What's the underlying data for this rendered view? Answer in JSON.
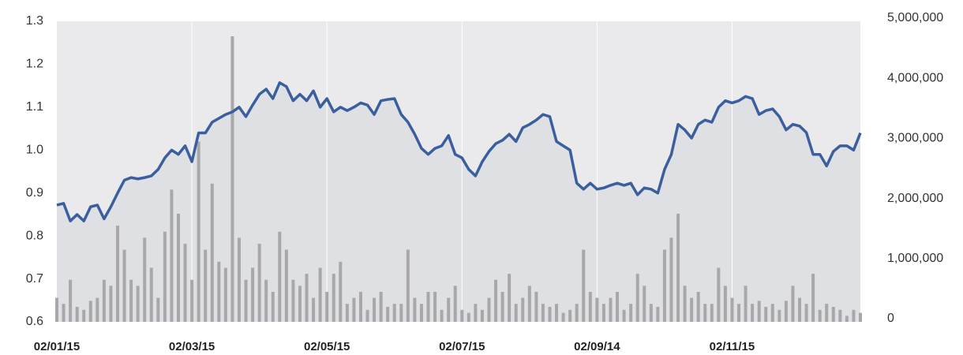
{
  "chart_data": {
    "type": "line-bar",
    "categories": [
      "02/01/15",
      null,
      null,
      null,
      null,
      null,
      null,
      null,
      null,
      null,
      null,
      null,
      null,
      null,
      null,
      null,
      null,
      null,
      null,
      null,
      "02/03/15",
      null,
      null,
      null,
      null,
      null,
      null,
      null,
      null,
      null,
      null,
      null,
      null,
      null,
      null,
      null,
      null,
      null,
      null,
      null,
      "02/05/15",
      null,
      null,
      null,
      null,
      null,
      null,
      null,
      null,
      null,
      null,
      null,
      null,
      null,
      null,
      null,
      null,
      null,
      null,
      null,
      "02/07/15",
      null,
      null,
      null,
      null,
      null,
      null,
      null,
      null,
      null,
      null,
      null,
      null,
      null,
      null,
      null,
      null,
      null,
      null,
      null,
      "02/09/14",
      null,
      null,
      null,
      null,
      null,
      null,
      null,
      null,
      null,
      null,
      null,
      null,
      null,
      null,
      null,
      null,
      null,
      null,
      null,
      "02/11/15",
      null,
      null,
      null,
      null,
      null,
      null,
      null,
      null,
      null,
      null,
      null,
      null,
      null,
      null,
      null,
      null,
      null,
      null,
      null
    ],
    "series": [
      {
        "type": "line",
        "color": "#3b5f9e",
        "values": [
          0.872,
          0.876,
          0.835,
          0.85,
          0.835,
          0.868,
          0.872,
          0.84,
          0.868,
          0.9,
          0.93,
          0.936,
          0.933,
          0.936,
          0.94,
          0.955,
          0.982,
          1.0,
          0.99,
          1.01,
          0.973,
          1.04,
          1.04,
          1.065,
          1.074,
          1.083,
          1.089,
          1.1,
          1.078,
          1.105,
          1.13,
          1.142,
          1.12,
          1.157,
          1.148,
          1.115,
          1.13,
          1.115,
          1.138,
          1.1,
          1.12,
          1.089,
          1.1,
          1.092,
          1.1,
          1.11,
          1.105,
          1.083,
          1.115,
          1.118,
          1.12,
          1.083,
          1.065,
          1.037,
          1.004,
          0.99,
          1.004,
          1.01,
          1.034,
          0.99,
          0.982,
          0.955,
          0.94,
          0.973,
          0.997,
          1.015,
          1.023,
          1.037,
          1.02,
          1.052,
          1.06,
          1.07,
          1.083,
          1.078,
          1.02,
          1.01,
          1.0,
          0.923,
          0.909,
          0.923,
          0.909,
          0.912,
          0.918,
          0.923,
          0.918,
          0.923,
          0.896,
          0.912,
          0.909,
          0.9,
          0.955,
          0.99,
          1.06,
          1.047,
          1.028,
          1.06,
          1.07,
          1.065,
          1.1,
          1.115,
          1.11,
          1.115,
          1.125,
          1.12,
          1.083,
          1.092,
          1.096,
          1.078,
          1.047,
          1.06,
          1.056,
          1.041,
          0.99,
          0.99,
          0.963,
          0.997,
          1.01,
          1.01,
          1.0,
          1.04
        ]
      },
      {
        "type": "bar",
        "color": "#a8a8aa",
        "axis": "y2",
        "values": [
          400000,
          300000,
          700000,
          250000,
          200000,
          350000,
          400000,
          700000,
          600000,
          1600000,
          1200000,
          700000,
          600000,
          1400000,
          900000,
          400000,
          1500000,
          2200000,
          1800000,
          1300000,
          700000,
          3000000,
          1200000,
          2300000,
          1000000,
          900000,
          4750000,
          1400000,
          700000,
          900000,
          1300000,
          700000,
          500000,
          1500000,
          1200000,
          700000,
          600000,
          800000,
          400000,
          900000,
          500000,
          800000,
          1000000,
          300000,
          400000,
          500000,
          200000,
          400000,
          500000,
          250000,
          300000,
          300000,
          1200000,
          400000,
          300000,
          500000,
          500000,
          200000,
          400000,
          600000,
          200000,
          150000,
          300000,
          200000,
          400000,
          700000,
          500000,
          800000,
          300000,
          400000,
          600000,
          500000,
          300000,
          250000,
          300000,
          150000,
          200000,
          300000,
          1200000,
          500000,
          400000,
          300000,
          400000,
          500000,
          200000,
          300000,
          800000,
          600000,
          300000,
          250000,
          1200000,
          1400000,
          1800000,
          600000,
          400000,
          500000,
          300000,
          300000,
          900000,
          600000,
          400000,
          300000,
          600000,
          300000,
          350000,
          250000,
          300000,
          200000,
          350000,
          600000,
          400000,
          300000,
          800000,
          200000,
          300000,
          250000,
          200000,
          100000,
          200000,
          150000
        ]
      }
    ],
    "ylim": [
      0.6,
      1.3
    ],
    "yticks": [
      0.6,
      0.7,
      0.8,
      0.9,
      {
        "value": 1,
        "label": "1.0"
      },
      1.1,
      1.2,
      1.3
    ],
    "y2lim": [
      0,
      5000000
    ],
    "y2ticks": [
      0,
      {
        "value": 1000000,
        "label": "1,000,000"
      },
      {
        "value": 2000000,
        "label": "2,000,000"
      },
      {
        "value": 3000000,
        "label": "3,000,000"
      },
      {
        "value": 4000000,
        "label": "4,000,000"
      },
      {
        "value": 5000000,
        "label": "5,000,000"
      }
    ],
    "grid": true
  }
}
